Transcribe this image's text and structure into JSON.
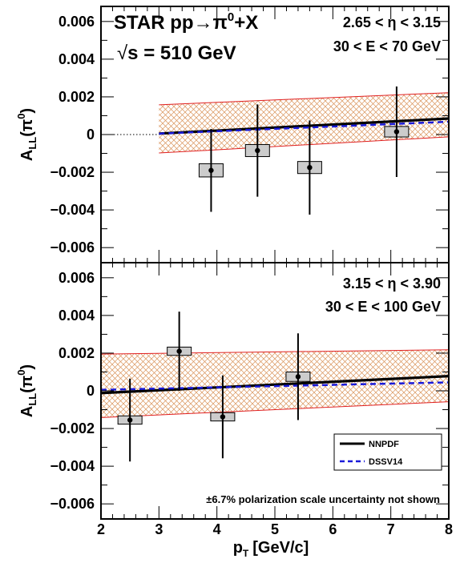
{
  "chart_data": {
    "type": "scatter",
    "x_label": "p",
    "x_label_sub": "T",
    "x_label_unit": "[GeV/c]",
    "x_range": [
      2,
      8
    ],
    "x_ticks": [
      "2",
      "3",
      "4",
      "5",
      "6",
      "7",
      "8"
    ],
    "y_label": "A",
    "y_label_sub": "LL",
    "y_label_arg": "(π",
    "y_label_sup": "0",
    "y_label_close": ")",
    "y_ticks": [
      "0.006",
      "0.004",
      "0.002",
      "0",
      "−0.002",
      "−0.004",
      "−0.006"
    ],
    "y_tick_values": [
      0.006,
      0.004,
      0.002,
      0,
      -0.002,
      -0.004,
      -0.006
    ],
    "experiment": {
      "line1": "STAR pp→π",
      "line1_sup": "0",
      "line1_end": "+X",
      "sqrt_symbol": "√",
      "line2": "s = 510 GeV"
    },
    "legend": {
      "position": "lower-right",
      "entries": [
        "NNPDF",
        "DSSV14"
      ]
    },
    "note": "±6.7% polarization scale uncertainty not shown",
    "colors": {
      "nnpdf": "#000000",
      "dssv14": "#1a1ad9",
      "band": "#e02020",
      "box_fill": "#cccccc"
    },
    "panels": [
      {
        "label_line1": "2.65 < η < 3.15",
        "label_line2": "30 < E < 70 GeV",
        "y_range": [
          -0.0068,
          0.0068
        ],
        "dotted_zero_from": 2.0,
        "band_x": [
          3.0,
          8.0
        ],
        "band_upper": [
          0.00158,
          0.00222
        ],
        "band_lower": [
          -0.00098,
          -0.00012
        ],
        "nnpdf": {
          "x": [
            3.0,
            8.0
          ],
          "y": [
            5e-05,
            0.00085
          ]
        },
        "dssv14": {
          "x": [
            3.0,
            8.0
          ],
          "y": [
            5e-05,
            0.00068
          ]
        },
        "points": [
          {
            "x": 3.9,
            "y": -0.0019,
            "stat_err": 0.0022,
            "sys": 0.00035
          },
          {
            "x": 4.7,
            "y": -0.00085,
            "stat_err": 0.00245,
            "sys": 0.00032
          },
          {
            "x": 5.6,
            "y": -0.00175,
            "stat_err": 0.0025,
            "sys": 0.00032
          },
          {
            "x": 7.1,
            "y": 0.00015,
            "stat_err": 0.0024,
            "sys": 0.00028
          }
        ]
      },
      {
        "label_line1": "3.15 < η < 3.90",
        "label_line2": "30 < E < 100 GeV",
        "y_range": [
          -0.0068,
          0.0068
        ],
        "dotted_zero_from": null,
        "band_x": [
          2.0,
          8.0
        ],
        "band_upper": [
          0.00195,
          0.00218
        ],
        "band_lower": [
          -0.00142,
          -0.00058
        ],
        "nnpdf": {
          "x": [
            2.0,
            8.0
          ],
          "y": [
            -0.00012,
            0.00078
          ]
        },
        "dssv14": {
          "x": [
            2.0,
            8.0
          ],
          "y": [
            5e-05,
            0.00045
          ]
        },
        "points": [
          {
            "x": 2.5,
            "y": -0.00155,
            "stat_err": 0.0022,
            "sys": 0.00022
          },
          {
            "x": 3.35,
            "y": 0.0021,
            "stat_err": 0.0021,
            "sys": 0.00022
          },
          {
            "x": 4.1,
            "y": -0.00138,
            "stat_err": 0.0022,
            "sys": 0.00022
          },
          {
            "x": 5.4,
            "y": 0.00075,
            "stat_err": 0.0023,
            "sys": 0.00025
          }
        ]
      }
    ]
  }
}
